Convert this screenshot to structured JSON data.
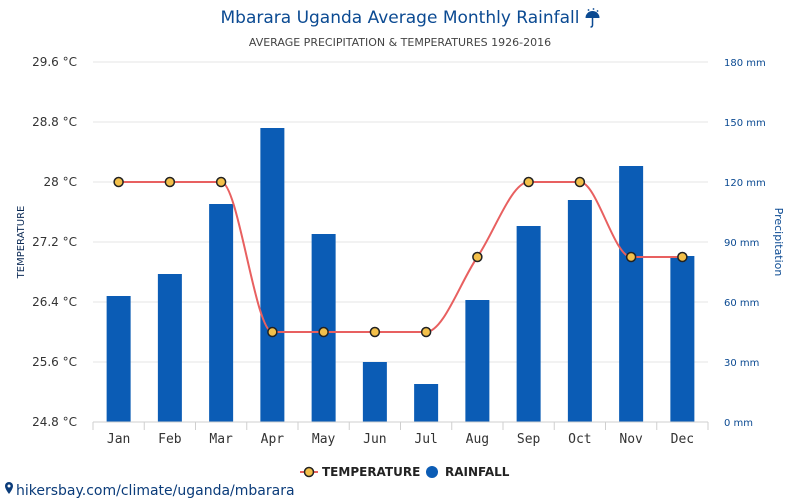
{
  "chart_data": {
    "type": "bar",
    "title": "Mbarara Uganda Average Monthly Rainfall",
    "title_icon": "umbrella-icon",
    "subtitle": "AVERAGE PRECIPITATION & TEMPERATURES 1926-2016",
    "categories": [
      "Jan",
      "Feb",
      "Mar",
      "Apr",
      "May",
      "Jun",
      "Jul",
      "Aug",
      "Sep",
      "Oct",
      "Nov",
      "Dec"
    ],
    "y_left": {
      "label": "TEMPERATURE",
      "ticks": [
        "24.8 °C",
        "25.6 °C",
        "26.4 °C",
        "27.2 °C",
        "28 °C",
        "28.8 °C",
        "29.6 °C"
      ],
      "ylim": [
        24.8,
        29.6
      ]
    },
    "y_right": {
      "label": "Precipitation",
      "ticks": [
        "0 mm",
        "30 mm",
        "60 mm",
        "90 mm",
        "120 mm",
        "150 mm",
        "180 mm"
      ],
      "ylim": [
        0,
        180
      ]
    },
    "series": [
      {
        "name": "TEMPERATURE",
        "type": "line",
        "axis": "left",
        "color": "#e86060",
        "marker_fill": "#f3c04a",
        "values": [
          28,
          28,
          28,
          26,
          26,
          26,
          26,
          27,
          28,
          28,
          27,
          27
        ]
      },
      {
        "name": "RAINFALL",
        "type": "bar",
        "axis": "right",
        "color": "#0b5cb5",
        "values": [
          63,
          74,
          109,
          147,
          94,
          30,
          19,
          61,
          98,
          111,
          128,
          83
        ]
      }
    ],
    "grid": true,
    "legend_position": "bottom"
  },
  "source": "hikersbay.com/climate/uganda/mbarara",
  "colors": {
    "title": "#0b4a92",
    "grid": "#e6e6e6",
    "bars": "#0b5cb5",
    "line": "#e86060"
  }
}
